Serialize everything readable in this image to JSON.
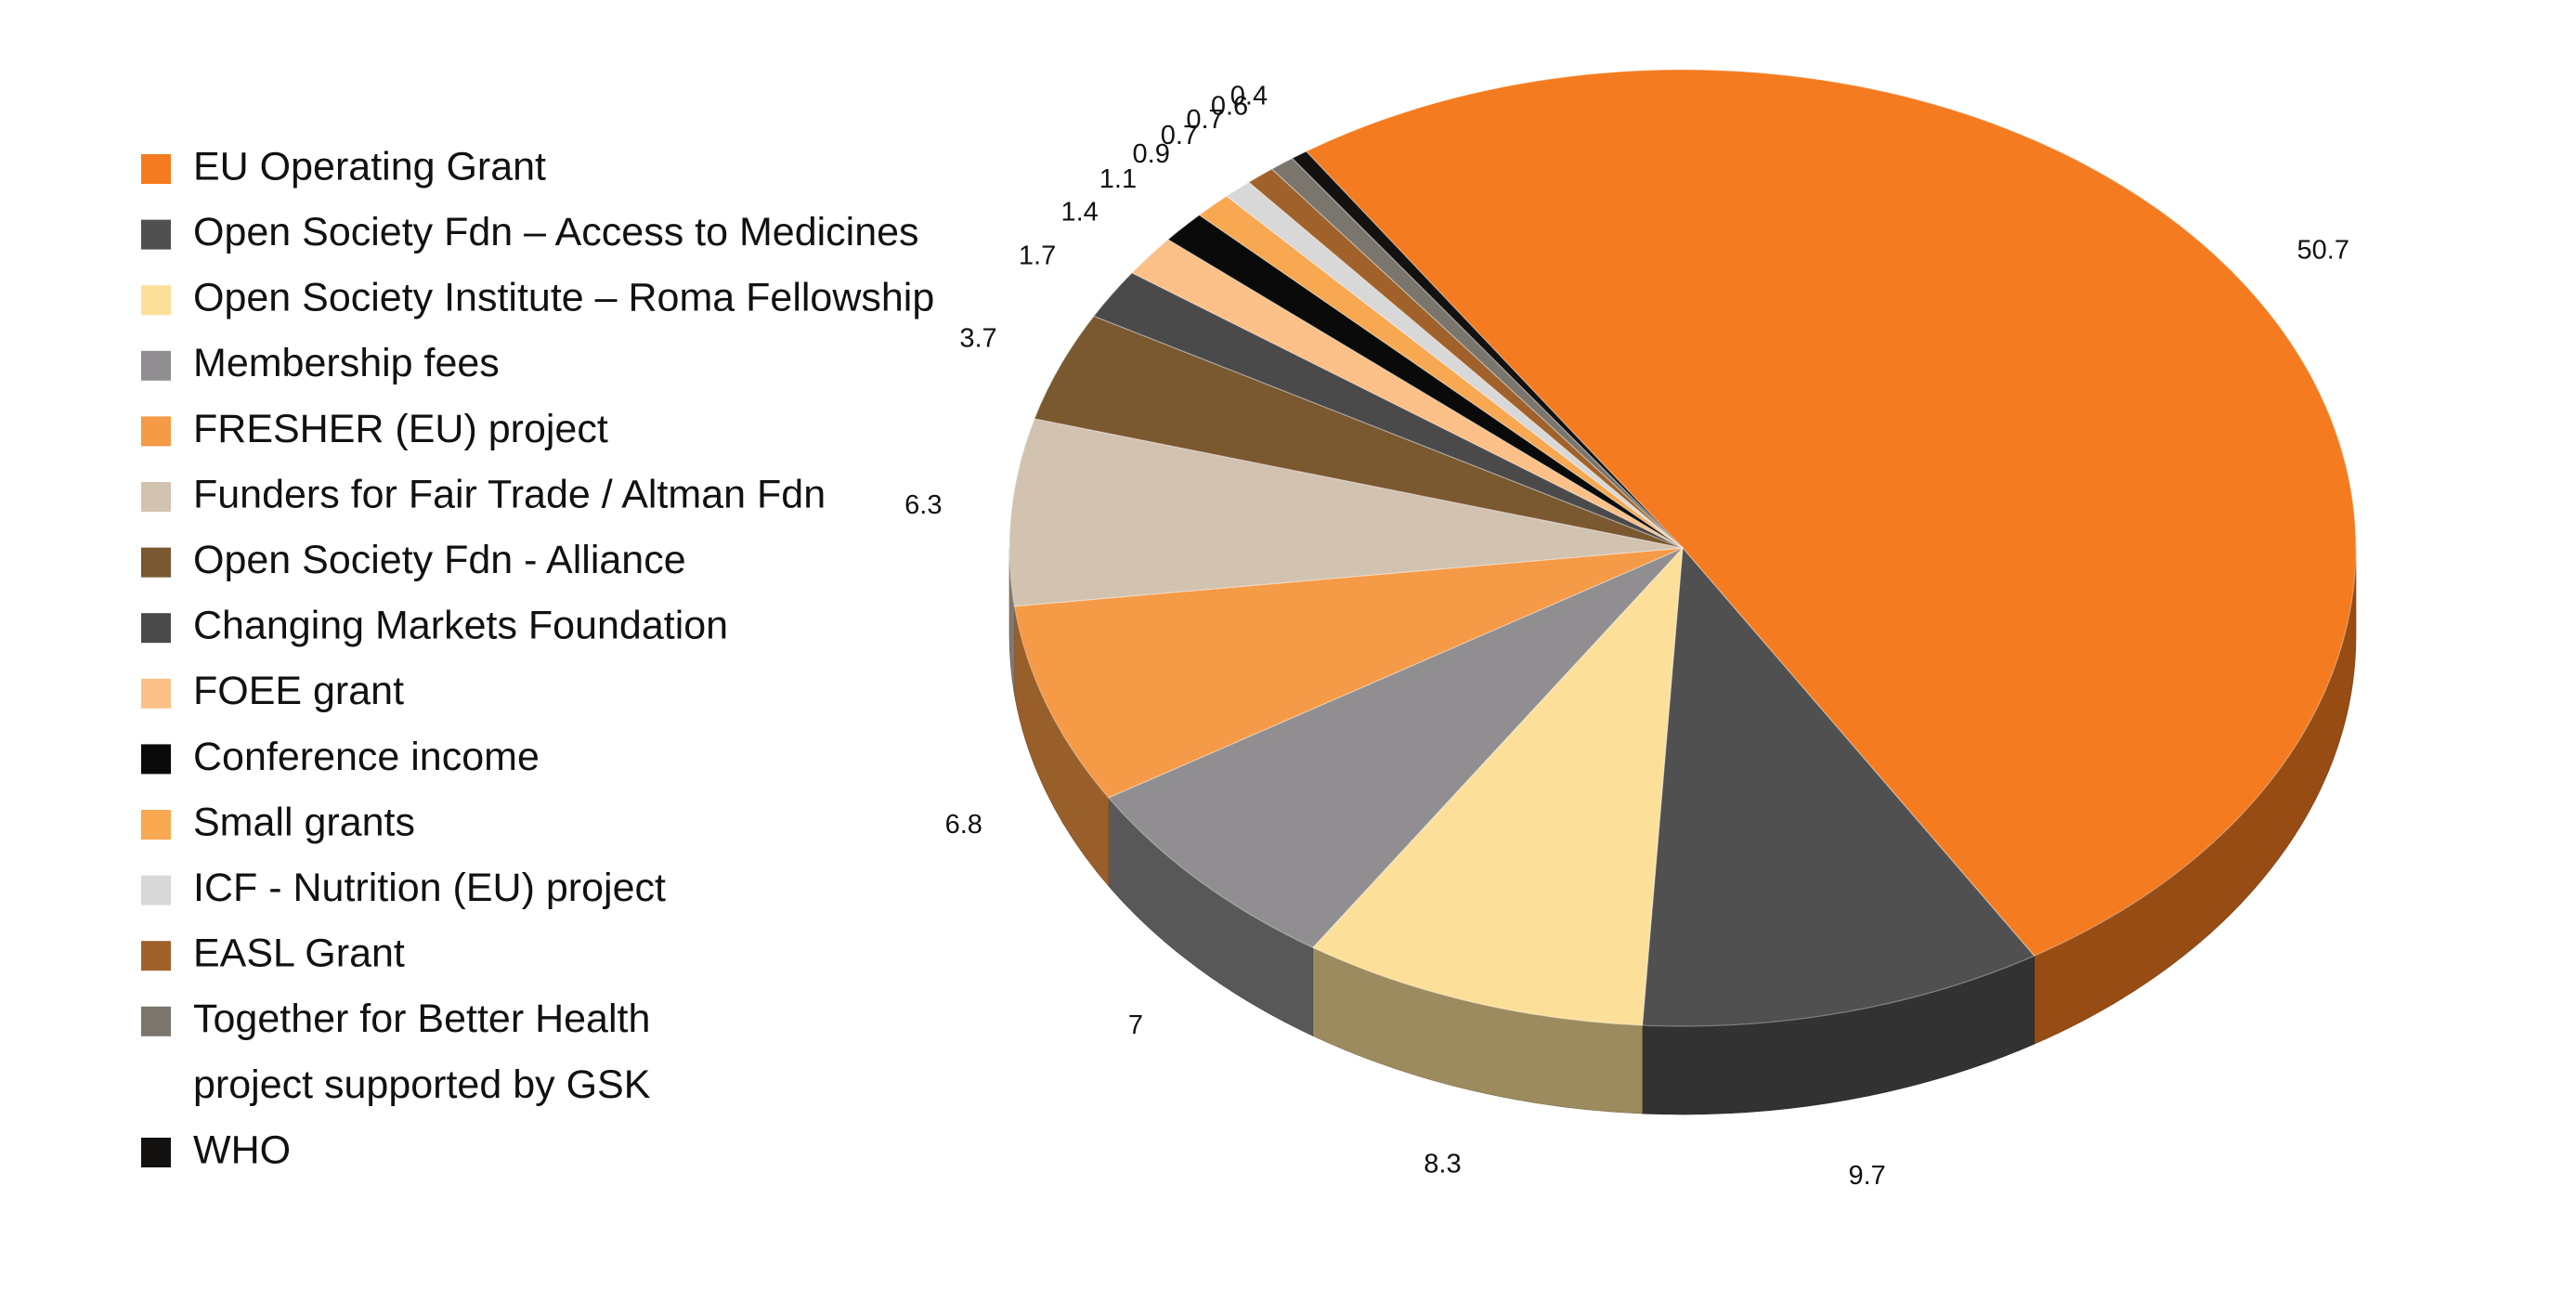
{
  "chart_data": {
    "type": "pie",
    "style": "3d",
    "legend_position": "left",
    "title": "",
    "slices": [
      {
        "label": "EU Operating Grant",
        "value": 50.7,
        "display": "50.7",
        "color": "#F47B20"
      },
      {
        "label": "Open Society Fdn – Access to Medicines",
        "value": 9.7,
        "display": "9.7",
        "color": "#505050"
      },
      {
        "label": "Open Society Institute – Roma Fellowship",
        "value": 8.3,
        "display": "8.3",
        "color": "#FCE09A"
      },
      {
        "label": "Membership fees",
        "value": 7,
        "display": "7",
        "color": "#908E90"
      },
      {
        "label": "FRESHER (EU) project",
        "value": 6.8,
        "display": "6.8",
        "color": "#F59A46"
      },
      {
        "label": "Funders for Fair Trade / Altman Fdn",
        "value": 6.3,
        "display": "6.3",
        "color": "#D2C2B0"
      },
      {
        "label": "Open Society Fdn - Alliance",
        "value": 3.7,
        "display": "3.7",
        "color": "#7A5830"
      },
      {
        "label": "Changing Markets Foundation",
        "value": 1.7,
        "display": "1.7",
        "color": "#4A4A4A"
      },
      {
        "label": "FOEE grant",
        "value": 1.4,
        "display": "1.4",
        "color": "#FBC088"
      },
      {
        "label": "Conference income",
        "value": 1.1,
        "display": "1.1",
        "color": "#0A0A0A"
      },
      {
        "label": "Small grants",
        "value": 0.9,
        "display": "0.9",
        "color": "#F7A850"
      },
      {
        "label": "ICF - Nutrition (EU) project",
        "value": 0.7,
        "display": "0.7",
        "color": "#D8D8D8"
      },
      {
        "label": "EASL Grant",
        "value": 0.7,
        "display": "0.7",
        "color": "#A0622A"
      },
      {
        "label": "Together for Better Health project supported by GSK",
        "value": 0.6,
        "display": "0.6",
        "color": "#7A766E"
      },
      {
        "label": "WHO",
        "value": 0.4,
        "display": "0.4",
        "color": "#141210"
      }
    ],
    "legend_lines": [
      [
        "EU Operating Grant"
      ],
      [
        "Open Society Fdn – Access to Medicines"
      ],
      [
        "Open Society Institute – Roma Fellowship"
      ],
      [
        "Membership fees"
      ],
      [
        "FRESHER (EU) project"
      ],
      [
        "Funders for Fair Trade / Altman Fdn"
      ],
      [
        "Open Society Fdn - Alliance"
      ],
      [
        "Changing Markets Foundation"
      ],
      [
        "FOEE grant"
      ],
      [
        "Conference income"
      ],
      [
        "Small grants"
      ],
      [
        "ICF - Nutrition (EU) project"
      ],
      [
        "EASL Grant"
      ],
      [
        "Together for Better Health",
        "project supported by GSK"
      ],
      [
        "WHO"
      ]
    ]
  }
}
